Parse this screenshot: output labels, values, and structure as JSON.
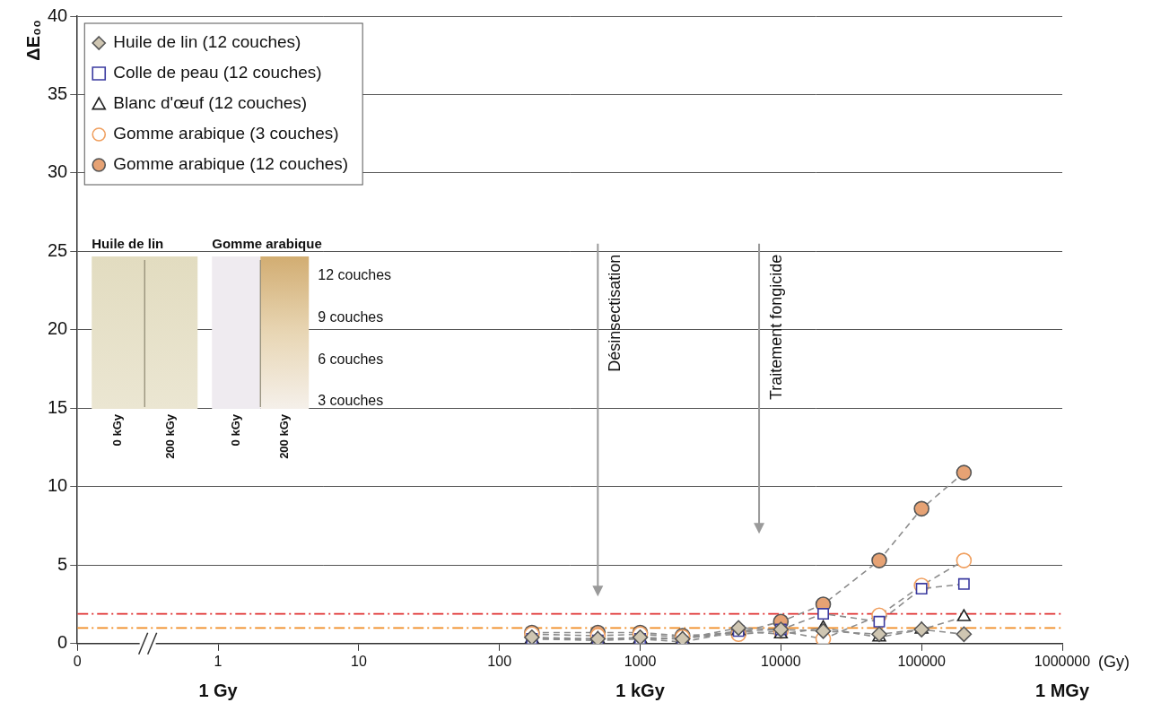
{
  "chart_data": {
    "type": "scatter",
    "y_label": "ΔE₀₀",
    "x_label": "(Gy)",
    "log": "x",
    "grid": true,
    "legend": "upper left",
    "xlim": [
      0.1,
      1000000
    ],
    "xticks": [
      {
        "value": 0.1,
        "label": "0"
      },
      1,
      10,
      100,
      1000,
      10000,
      100000,
      1000000
    ],
    "ylim": [
      0,
      40
    ],
    "yticks": [
      0,
      5,
      10,
      15,
      20,
      25,
      30,
      35,
      40
    ],
    "x": [
      170,
      500,
      1000,
      2000,
      5000,
      10000,
      20000,
      50000,
      100000,
      200000
    ],
    "series": [
      {
        "name": "Huile de lin (12 couches)",
        "color": "#cfc6b2",
        "marker": "diamond",
        "line_style": "dashed",
        "values": [
          0.4,
          0.3,
          0.4,
          0.3,
          1.0,
          0.9,
          0.8,
          0.6,
          0.9,
          0.6
        ]
      },
      {
        "name": "Colle de peau (12 couches)",
        "color": "#3b3ba0",
        "marker": "square-open",
        "line_style": "dashed",
        "values": [
          0.3,
          0.2,
          0.3,
          0.1,
          0.8,
          0.9,
          1.9,
          1.4,
          3.5,
          3.8
        ]
      },
      {
        "name": "Blanc d'œuf (12 couches)",
        "color": "#222222",
        "marker": "triangle-open",
        "line_style": "dashed",
        "values": [
          0.3,
          0.3,
          0.3,
          0.3,
          0.8,
          0.6,
          1.0,
          0.4,
          0.9,
          1.7
        ]
      },
      {
        "name": "Gomme arabique (3 couches)",
        "color": "#f0a060",
        "marker": "circle-open",
        "line_style": "dashed",
        "values": [
          0.6,
          0.5,
          0.6,
          0.4,
          0.6,
          0.8,
          0.3,
          1.8,
          3.7,
          5.3
        ]
      },
      {
        "name": "Gomme arabique (12 couches)",
        "color": "#e6a274",
        "marker": "circle",
        "line_style": "dashed",
        "values": [
          0.7,
          0.7,
          0.7,
          0.5,
          0.7,
          1.4,
          2.5,
          5.3,
          8.6,
          10.9
        ]
      }
    ],
    "thresholds": [
      {
        "value": 1.9,
        "color": "#e03030",
        "line_style": "dashdot"
      },
      {
        "value": 1.0,
        "color": "#f08a20",
        "line_style": "dashdot"
      }
    ],
    "annotations": [
      {
        "text": "Désinsectisation",
        "x": 500,
        "y_from": 25.5,
        "y_to": 3
      },
      {
        "text": "Traitement fongicide",
        "x": 7000,
        "y_from": 25.5,
        "y_to": 7
      }
    ],
    "scale_labels": [
      {
        "x": 1,
        "text": "1 Gy"
      },
      {
        "x": 1000,
        "text": "1 kGy"
      },
      {
        "x": 1000000,
        "text": "1 MGy"
      }
    ],
    "inset": {
      "columns": [
        "Huile de lin",
        "Gomme arabique"
      ],
      "rows": [
        "12 couches",
        "9 couches",
        "6 couches",
        "3 couches"
      ],
      "doses": [
        "0 kGy",
        "200 kGy"
      ]
    }
  }
}
